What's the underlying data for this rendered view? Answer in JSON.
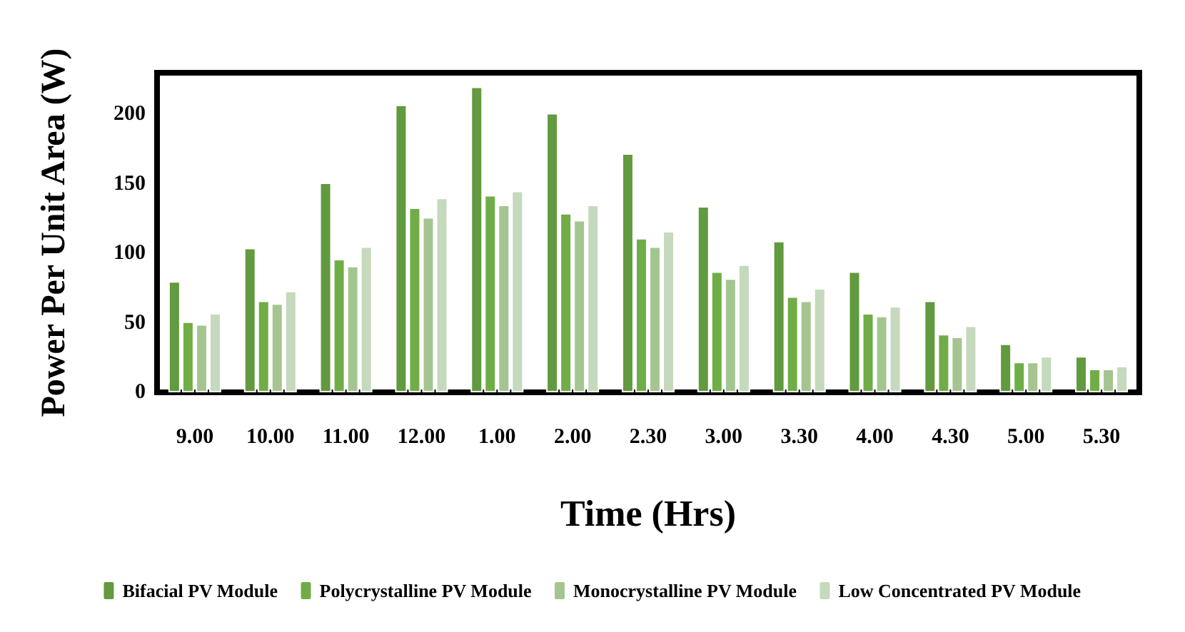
{
  "chart_data": {
    "type": "bar",
    "xlabel": "Time (Hrs)",
    "ylabel": "Power Per Unit Area (W)",
    "categories": [
      "9.00",
      "10.00",
      "11.00",
      "12.00",
      "1.00",
      "2.00",
      "2.30",
      "3.00",
      "3.30",
      "4.00",
      "4.30",
      "5.00",
      "5.30"
    ],
    "series": [
      {
        "name": "Bifacial PV Module",
        "color": "#629a3f",
        "values": [
          80,
          104,
          151,
          207,
          220,
          201,
          172,
          134,
          109,
          87,
          66,
          35,
          26
        ]
      },
      {
        "name": "Polycrystalline PV Module",
        "color": "#70ad47",
        "values": [
          51,
          66,
          96,
          133,
          142,
          129,
          111,
          87,
          69,
          57,
          42,
          22,
          17
        ]
      },
      {
        "name": "Monocrystalline PV Module",
        "color": "#a5c590",
        "values": [
          49,
          64,
          91,
          126,
          135,
          124,
          105,
          82,
          66,
          55,
          40,
          22,
          17
        ]
      },
      {
        "name": "Low Concentrated PV Module",
        "color": "#c5d9bc",
        "values": [
          57,
          73,
          105,
          140,
          145,
          135,
          116,
          92,
          75,
          62,
          48,
          26,
          19
        ]
      }
    ],
    "ylim": [
      0,
      230
    ],
    "yticks": [
      0,
      50,
      100,
      150,
      200
    ],
    "grid": false,
    "legend": "bottom"
  }
}
